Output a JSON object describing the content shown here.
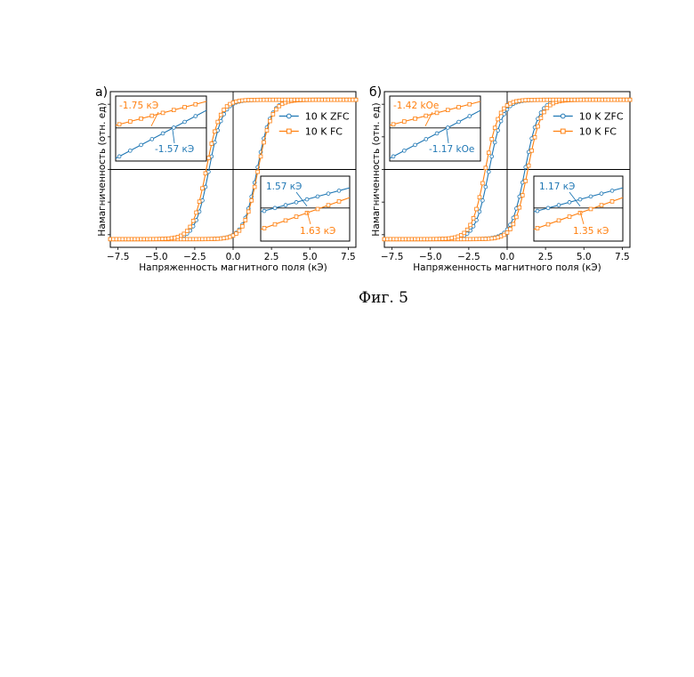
{
  "figure_caption": "Фиг. 5",
  "colors": {
    "zfc": "#1f77b4",
    "fc": "#ff7f0e",
    "axis": "#000000",
    "fit": "#555555"
  },
  "chart_data": [
    {
      "type": "line",
      "panel_label": "а)",
      "xlabel": "Напряженность магнитного поля (кЭ)",
      "ylabel": "Намагниченность (отн. ед)",
      "xlim": [
        -8,
        8
      ],
      "ylim": [
        -1.05,
        1.05
      ],
      "x_ticks": [
        -7.5,
        -5.0,
        -2.5,
        0.0,
        2.5,
        5.0,
        7.5
      ],
      "x_tick_labels": [
        "−7.5",
        "−5.0",
        "−2.5",
        "0.0",
        "2.5",
        "5.0",
        "7.5"
      ],
      "legend_position": "center-right",
      "series": [
        {
          "name": "10 K ZFC",
          "color_key": "zfc",
          "marker": "circle",
          "coercive_left": -1.57,
          "coercive_right": 1.57
        },
        {
          "name": "10 K FC",
          "color_key": "fc",
          "marker": "square",
          "coercive_left": -1.75,
          "coercive_right": 1.63
        }
      ],
      "annotations": [
        {
          "text": "-1.75 кЭ",
          "series": "10 K FC",
          "location": "inset-top-left"
        },
        {
          "text": "-1.57 кЭ",
          "series": "10 K ZFC",
          "location": "inset-top-left"
        },
        {
          "text": "1.57 кЭ",
          "series": "10 K ZFC",
          "location": "inset-bottom-right"
        },
        {
          "text": "1.63 кЭ",
          "series": "10 K FC",
          "location": "inset-bottom-right"
        }
      ]
    },
    {
      "type": "line",
      "panel_label": "б)",
      "xlabel": "Напряженность магнитного поля (кЭ)",
      "ylabel": "Намагниченность (отн. ед)",
      "xlim": [
        -8,
        8
      ],
      "ylim": [
        -1.05,
        1.05
      ],
      "x_ticks": [
        -7.5,
        -5.0,
        -2.5,
        0.0,
        2.5,
        5.0,
        7.5
      ],
      "x_tick_labels": [
        "−7.5",
        "−5.0",
        "−2.5",
        "0.0",
        "2.5",
        "5.0",
        "7.5"
      ],
      "legend_position": "center-right",
      "series": [
        {
          "name": "10 K ZFC",
          "color_key": "zfc",
          "marker": "circle",
          "coercive_left": -1.17,
          "coercive_right": 1.17
        },
        {
          "name": "10 K FC",
          "color_key": "fc",
          "marker": "square",
          "coercive_left": -1.42,
          "coercive_right": 1.35
        }
      ],
      "annotations": [
        {
          "text": "-1.42 kOe",
          "series": "10 K FC",
          "location": "inset-top-left"
        },
        {
          "text": "-1.17 kOe",
          "series": "10 K ZFC",
          "location": "inset-top-left"
        },
        {
          "text": "1.17 кЭ",
          "series": "10 K ZFC",
          "location": "inset-bottom-right"
        },
        {
          "text": "1.35 кЭ",
          "series": "10 K FC",
          "location": "inset-bottom-right"
        }
      ]
    }
  ]
}
